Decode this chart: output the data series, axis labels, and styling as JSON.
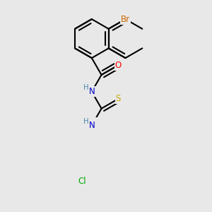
{
  "bg_color": "#e8e8e8",
  "bond_color": "#000000",
  "bond_width": 1.5,
  "atom_colors": {
    "Br": "#cc6600",
    "O": "#ff0000",
    "N": "#0000cc",
    "S": "#ccaa00",
    "Cl": "#00aa00",
    "H": "#4488aa"
  },
  "font_size": 8.5,
  "dbo": 0.05
}
